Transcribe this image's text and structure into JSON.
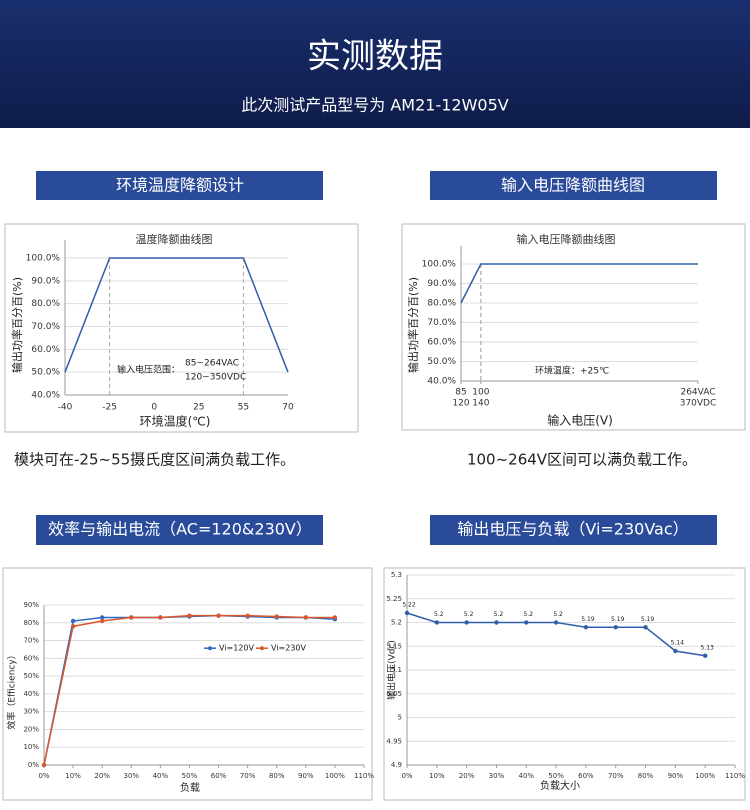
{
  "header": {
    "title": "实测数据",
    "subtitle": "此次测试产品型号为 AM21-12W05V"
  },
  "sections": [
    {
      "heading": "环境温度降额设计",
      "caption": "模块可在-25~55摄氏度区间满负载工作。"
    },
    {
      "heading": "输入电压降额曲线图",
      "caption": "100~264V区间可以满负载工作。"
    },
    {
      "heading": "效率与输出电流（AC=120&230V）"
    },
    {
      "heading": "输出电压与负载（Vi=230Vac）"
    }
  ],
  "chart_data": [
    {
      "type": "line",
      "title": "温度降额曲线图",
      "x_label": "环境温度(℃)",
      "y_label": "输出功率百分百(%)",
      "categories": [
        "-40",
        "-25",
        "0",
        "25",
        "55",
        "70"
      ],
      "values": [
        50,
        100,
        100,
        100,
        100,
        50
      ],
      "color": "#2e5fa8",
      "ylim": [
        40,
        100
      ],
      "yticks": [
        {
          "value": 40,
          "label": "40.0%"
        },
        {
          "value": 50,
          "label": "50.0%"
        },
        {
          "value": 60,
          "label": "60.0%"
        },
        {
          "value": 70,
          "label": "70.0%"
        },
        {
          "value": 80,
          "label": "80.0%"
        },
        {
          "value": 90,
          "label": "90.0%"
        },
        {
          "value": 100,
          "label": "100.0%"
        }
      ],
      "grid": true,
      "annotation": [
        "输入电压范围：",
        "85~264VAC",
        "120~350VDC"
      ]
    },
    {
      "type": "line",
      "title": "输入电压降额曲线图",
      "x_label": "输入电压(V)",
      "y_label": "输出功率百分百(%)",
      "x": [
        85,
        100,
        264
      ],
      "values": [
        80,
        100,
        100
      ],
      "color": "#2e5fa8",
      "xlim": [
        85,
        264
      ],
      "xticks": [
        85,
        100,
        {
          "value": 264,
          "label": "264VAC"
        }
      ],
      "xtick_sublabels": [
        "120",
        "140",
        "370VDC"
      ],
      "ylim": [
        40,
        100
      ],
      "yticks": [
        {
          "value": 40,
          "label": "40.0%"
        },
        {
          "value": 50,
          "label": "50.0%"
        },
        {
          "value": 60,
          "label": "60.0%"
        },
        {
          "value": 70,
          "label": "70.0%"
        },
        {
          "value": 80,
          "label": "80.0%"
        },
        {
          "value": 90,
          "label": "90.0%"
        },
        {
          "value": 100,
          "label": "100.0%"
        }
      ],
      "grid": true,
      "annotation": [
        "环境温度：+25℃"
      ]
    },
    {
      "type": "line",
      "x_label": "负载",
      "y_label": "效率（Efficiency）",
      "x": [
        0,
        10,
        20,
        30,
        40,
        50,
        60,
        70,
        80,
        90,
        100
      ],
      "series": [
        {
          "name": "Vi=120V",
          "color": "#2e6bc4",
          "values": [
            0,
            81,
            83,
            83,
            83,
            83.5,
            84,
            83.5,
            83,
            83,
            82
          ]
        },
        {
          "name": "Vi=230V",
          "color": "#d9582b",
          "values": [
            0,
            78,
            81,
            83,
            83,
            84,
            84,
            84,
            83.5,
            83,
            83
          ]
        }
      ],
      "xlim": [
        0,
        110
      ],
      "xticks": [
        {
          "value": 0,
          "label": "0%"
        },
        {
          "value": 10,
          "label": "10%"
        },
        {
          "value": 20,
          "label": "20%"
        },
        {
          "value": 30,
          "label": "30%"
        },
        {
          "value": 40,
          "label": "40%"
        },
        {
          "value": 50,
          "label": "50%"
        },
        {
          "value": 60,
          "label": "60%"
        },
        {
          "value": 70,
          "label": "70%"
        },
        {
          "value": 80,
          "label": "80%"
        },
        {
          "value": 90,
          "label": "90%"
        },
        {
          "value": 100,
          "label": "100%"
        },
        {
          "value": 110,
          "label": "110%"
        }
      ],
      "ylim": [
        0,
        90
      ],
      "yticks": [
        {
          "value": 0,
          "label": "0%"
        },
        {
          "value": 10,
          "label": "10%"
        },
        {
          "value": 20,
          "label": "20%"
        },
        {
          "value": 30,
          "label": "30%"
        },
        {
          "value": 40,
          "label": "40%"
        },
        {
          "value": 50,
          "label": "50%"
        },
        {
          "value": 60,
          "label": "60%"
        },
        {
          "value": 70,
          "label": "70%"
        },
        {
          "value": 80,
          "label": "80%"
        },
        {
          "value": 90,
          "label": "90%"
        }
      ],
      "grid": true,
      "markers": true,
      "legend": "right"
    },
    {
      "type": "line",
      "x_label": "负载大小",
      "y_label": "输出电压(Vdc)",
      "x": [
        0,
        10,
        20,
        30,
        40,
        50,
        60,
        70,
        80,
        90,
        100
      ],
      "values": [
        5.22,
        5.2,
        5.2,
        5.2,
        5.2,
        5.2,
        5.19,
        5.19,
        5.19,
        5.14,
        5.13
      ],
      "color": "#2e5fa8",
      "xlim": [
        0,
        110
      ],
      "xticks": [
        {
          "value": 0,
          "label": "0%"
        },
        {
          "value": 10,
          "label": "10%"
        },
        {
          "value": 20,
          "label": "20%"
        },
        {
          "value": 30,
          "label": "30%"
        },
        {
          "value": 40,
          "label": "40%"
        },
        {
          "value": 50,
          "label": "50%"
        },
        {
          "value": 60,
          "label": "60%"
        },
        {
          "value": 70,
          "label": "70%"
        },
        {
          "value": 80,
          "label": "80%"
        },
        {
          "value": 90,
          "label": "90%"
        },
        {
          "value": 100,
          "label": "100%"
        },
        {
          "value": 110,
          "label": "110%"
        }
      ],
      "ylim": [
        4.9,
        5.3
      ],
      "yticks": [
        4.9,
        4.95,
        5,
        5.05,
        5.1,
        5.15,
        5.2,
        5.25,
        5.3
      ],
      "grid": true,
      "markers": true,
      "data_labels": true
    }
  ]
}
